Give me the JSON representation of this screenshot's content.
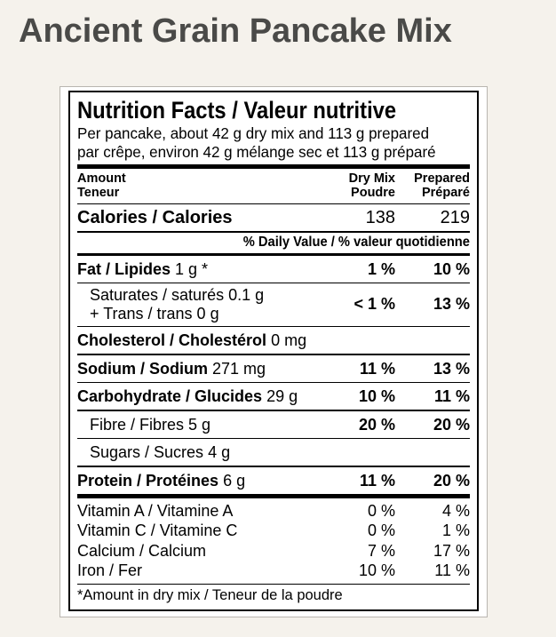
{
  "page": {
    "title": "Ancient Grain Pancake Mix"
  },
  "label": {
    "heading": "Nutrition Facts / Valeur nutritive",
    "serving_en": "Per pancake, about 42 g dry mix and 113 g prepared",
    "serving_fr": "par crêpe, environ 42 g mélange sec et 113 g préparé",
    "columns": {
      "amount": [
        "Amount",
        "Teneur"
      ],
      "dry_mix": [
        "Dry Mix",
        "Poudre"
      ],
      "prepared": [
        "Prepared",
        "Préparé"
      ]
    },
    "calories": {
      "label": "Calories / Calories",
      "dry": "138",
      "prepared": "219"
    },
    "daily_value_header": "% Daily Value / % valeur quotidienne",
    "nutrients": [
      {
        "name": "Fat / Lipides",
        "amount": "1 g *",
        "dry": "1 %",
        "prepared": "10 %"
      },
      {
        "line1": "Saturates / saturés 0.1 g",
        "line2": "+ Trans / trans 0 g",
        "dry": "< 1 %",
        "prepared": "13 %"
      },
      {
        "name": "Cholesterol / Cholestérol",
        "amount": "0 mg",
        "dry": "",
        "prepared": ""
      },
      {
        "name": "Sodium / Sodium",
        "amount": "271 mg",
        "dry": "11 %",
        "prepared": "13 %"
      },
      {
        "name": "Carbohydrate / Glucides",
        "amount": "29 g",
        "dry": "10 %",
        "prepared": "11 %"
      },
      {
        "name": "Fibre / Fibres",
        "amount": "5 g",
        "dry": "20 %",
        "prepared": "20 %"
      },
      {
        "name": "Sugars / Sucres",
        "amount": "4 g",
        "dry": "",
        "prepared": ""
      },
      {
        "name": "Protein / Protéines",
        "amount": "6 g",
        "dry": "11 %",
        "prepared": "20 %"
      }
    ],
    "micronutrients": [
      {
        "name": "Vitamin A / Vitamine A",
        "dry": "0 %",
        "prepared": "4 %"
      },
      {
        "name": "Vitamin C / Vitamine C",
        "dry": "0 %",
        "prepared": "1 %"
      },
      {
        "name": "Calcium / Calcium",
        "dry": "7 %",
        "prepared": "17 %"
      },
      {
        "name": "Iron / Fer",
        "dry": "10 %",
        "prepared": "11 %"
      }
    ],
    "footnote": "*Amount in dry mix / Teneur de la poudre"
  },
  "colors": {
    "page_background": "#f5f2ec",
    "title_text": "#4a4a48",
    "label_background": "#ffffff",
    "label_border": "#000000"
  }
}
